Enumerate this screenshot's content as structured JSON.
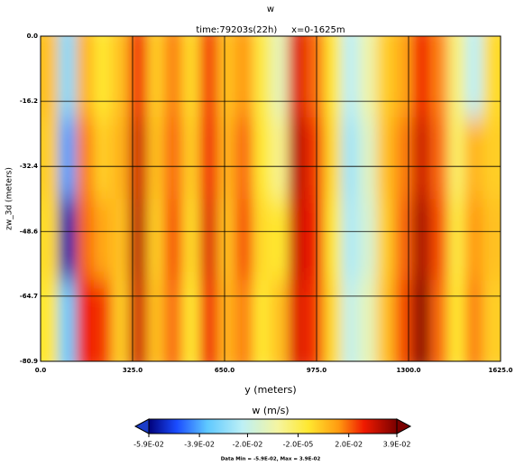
{
  "chart_data": {
    "type": "heatmap",
    "title": "w",
    "subtitle": "time:79203s(22h)     x=0-1625m",
    "xlabel": "y (meters)",
    "ylabel": "zw_3d (meters)",
    "xlim": [
      0,
      1625
    ],
    "ylim": [
      -80.9,
      0
    ],
    "xticks": [
      {
        "value": 0,
        "label": "0.0"
      },
      {
        "value": 325,
        "label": "325.0"
      },
      {
        "value": 650,
        "label": "650.0"
      },
      {
        "value": 975,
        "label": "975.0"
      },
      {
        "value": 1300,
        "label": "1300.0"
      },
      {
        "value": 1625,
        "label": "1625.0"
      }
    ],
    "yticks": [
      {
        "value": 0,
        "label": "0.0"
      },
      -16.2,
      -32.4,
      -48.6,
      -64.7,
      -80.9
    ],
    "grid": true,
    "x": [
      31.25,
      93.75,
      156.25,
      218.75,
      281.25,
      343.75,
      406.25,
      468.75,
      531.25,
      593.75,
      656.25,
      718.75,
      781.25,
      843.75,
      906.25,
      968.75,
      1031.25,
      1093.75,
      1156.25,
      1218.75,
      1281.25,
      1343.75,
      1406.25,
      1468.75,
      1531.25,
      1593.75
    ],
    "y": [
      -10.1,
      -30.3,
      -50.6,
      -70.8
    ],
    "values": [
      [
        0.01,
        -0.03,
        0.012,
        0.004,
        0.01,
        0.026,
        0.008,
        0.018,
        0.006,
        0.024,
        0.01,
        0.016,
        0.002,
        -0.012,
        0.028,
        0.02,
        0.004,
        -0.022,
        -0.01,
        0.008,
        0.014,
        0.026,
        0.018,
        -0.004,
        -0.022,
        0.006
      ],
      [
        0.008,
        -0.04,
        0.018,
        0.008,
        0.012,
        0.03,
        0.01,
        0.02,
        0.008,
        0.026,
        0.012,
        0.02,
        0.004,
        -0.006,
        0.032,
        0.024,
        0.006,
        -0.026,
        -0.014,
        0.01,
        0.018,
        0.03,
        0.02,
        -0.002,
        0.012,
        0.008
      ],
      [
        0.006,
        -0.055,
        0.02,
        0.014,
        0.01,
        0.032,
        0.008,
        0.022,
        0.006,
        0.028,
        0.01,
        0.022,
        0.006,
        0.004,
        0.03,
        0.026,
        0.004,
        -0.024,
        -0.016,
        0.008,
        0.02,
        0.034,
        0.022,
        0.002,
        0.016,
        0.01
      ],
      [
        0.004,
        -0.035,
        0.026,
        0.024,
        0.008,
        0.03,
        0.01,
        0.02,
        0.004,
        0.026,
        0.012,
        0.018,
        0.004,
        0.01,
        0.028,
        0.024,
        0.006,
        -0.02,
        -0.012,
        0.01,
        0.022,
        0.037,
        0.02,
        0.004,
        0.018,
        0.008
      ]
    ],
    "colorbar_title": "w (m/s)",
    "clim": [
      -0.059,
      0.039
    ],
    "cticks": [
      {
        "value": -0.059,
        "label": "-5.9E-02"
      },
      {
        "value": -0.039,
        "label": "-3.9E-02"
      },
      {
        "value": -0.02,
        "label": "-2.0E-02"
      },
      {
        "value": -2e-05,
        "label": "-2.0E-05"
      },
      {
        "value": 0.02,
        "label": "2.0E-02"
      },
      {
        "value": 0.039,
        "label": "3.9E-02"
      }
    ],
    "colormap": [
      {
        "value": -0.059,
        "color": "#00007a"
      },
      {
        "value": -0.048,
        "color": "#1a4cff"
      },
      {
        "value": -0.036,
        "color": "#5ec8ff"
      },
      {
        "value": -0.022,
        "color": "#bdf0f5"
      },
      {
        "value": -0.008,
        "color": "#f5f5a0"
      },
      {
        "value": 0.004,
        "color": "#ffe830"
      },
      {
        "value": 0.016,
        "color": "#ff9a10"
      },
      {
        "value": 0.026,
        "color": "#f01a00"
      },
      {
        "value": 0.039,
        "color": "#7a0000"
      }
    ],
    "note": "Data Min = -5.9E-02, Max = 3.9E-02"
  }
}
